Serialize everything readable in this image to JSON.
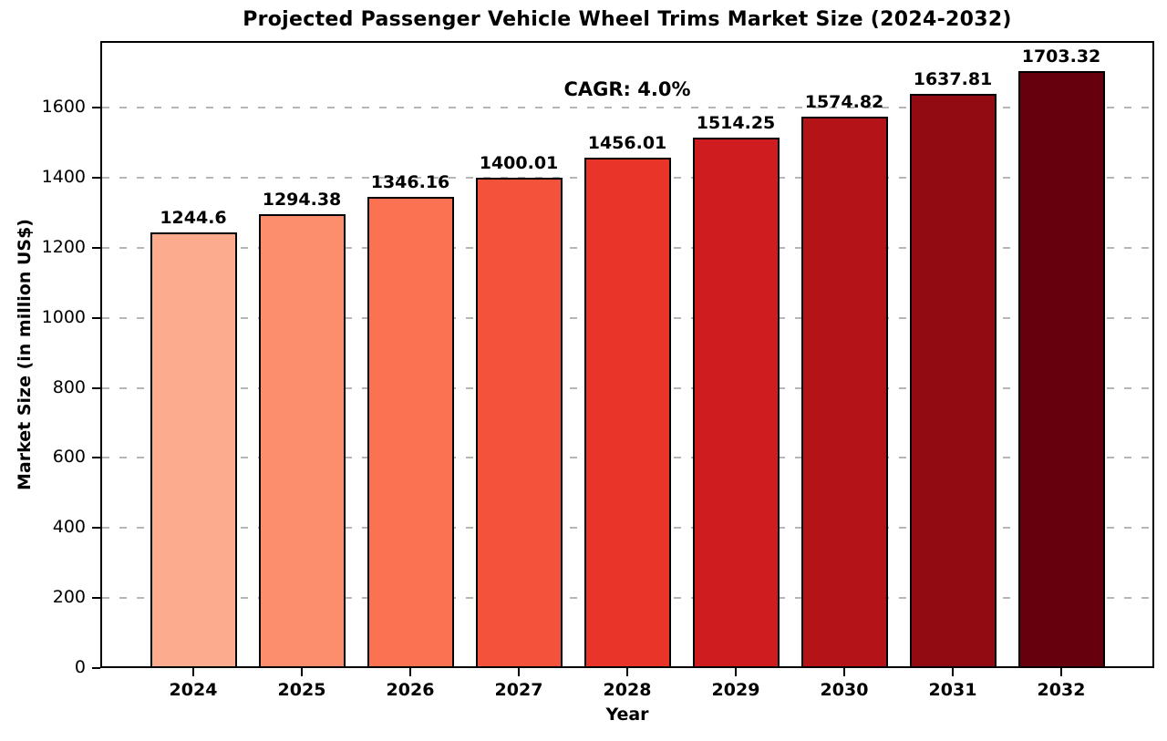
{
  "chart_data": {
    "type": "bar",
    "title": "Projected Passenger Vehicle Wheel Trims Market Size (2024-2032)",
    "xlabel": "Year",
    "ylabel": "Market Size (in million US$)",
    "annotation": "CAGR: 4.0%",
    "categories": [
      "2024",
      "2025",
      "2026",
      "2027",
      "2028",
      "2029",
      "2030",
      "2031",
      "2032"
    ],
    "values": [
      1244.6,
      1294.38,
      1346.16,
      1400.01,
      1456.01,
      1514.25,
      1574.82,
      1637.81,
      1703.32
    ],
    "bar_labels": [
      "1244.6",
      "1294.38",
      "1346.16",
      "1400.01",
      "1456.01",
      "1514.25",
      "1574.82",
      "1637.81",
      "1703.32"
    ],
    "bar_colors": [
      "#FCAB8E",
      "#FC8E6E",
      "#FB7252",
      "#F5523B",
      "#E83429",
      "#CF1C1F",
      "#B41318",
      "#920B13",
      "#67000D"
    ],
    "bar_edge_color": "#000000",
    "ylim": [
      0,
      1790
    ],
    "yticks": [
      0,
      200,
      400,
      600,
      800,
      1000,
      1200,
      1400,
      1600
    ],
    "grid": "horizontal-dashed",
    "grid_color": "#b6b6b6",
    "legend": "none"
  }
}
